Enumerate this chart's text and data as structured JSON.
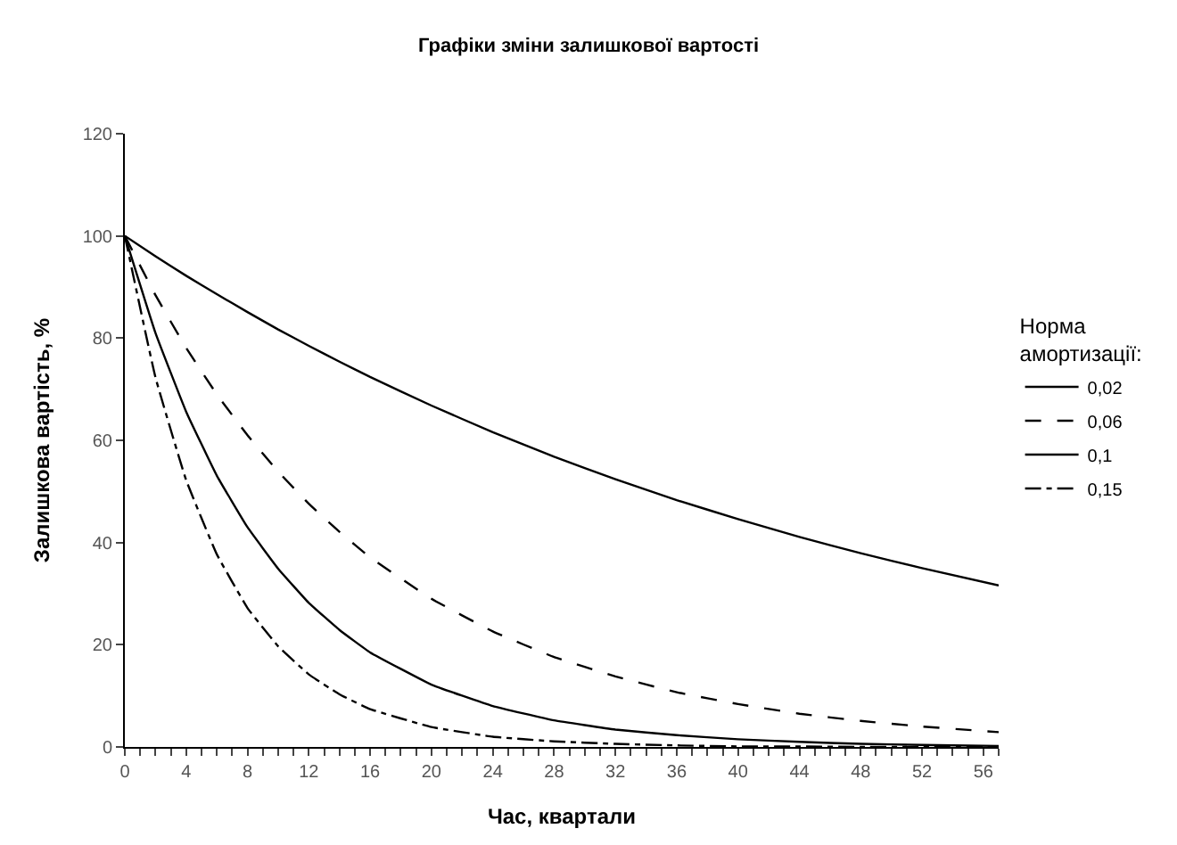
{
  "chart_data": {
    "type": "line",
    "title": "Графіки зміни залишкової вартості",
    "xlabel": "Час, квартали",
    "ylabel": "Залишкова вартість, %",
    "legend_title": "Норма амортизації:",
    "x": [
      0,
      2,
      4,
      6,
      8,
      10,
      12,
      14,
      16,
      20,
      24,
      28,
      32,
      36,
      40,
      44,
      48,
      52,
      57
    ],
    "series": [
      {
        "name": "0,02",
        "color": "#000000",
        "line_style": "solid",
        "values": [
          100,
          96,
          92.2,
          88.6,
          85.1,
          81.7,
          78.5,
          75.4,
          72.4,
          66.8,
          61.6,
          56.8,
          52.4,
          48.3,
          44.6,
          41.1,
          37.9,
          35.0,
          31.6
        ]
      },
      {
        "name": "0,06",
        "color": "#000000",
        "line_style": "dashed",
        "values": [
          100,
          88.4,
          78.1,
          69.0,
          61.0,
          53.9,
          47.6,
          42.1,
          37.1,
          29.0,
          22.6,
          17.6,
          13.8,
          10.7,
          8.4,
          6.5,
          5.1,
          4.0,
          2.9
        ]
      },
      {
        "name": "0,1",
        "color": "#000000",
        "line_style": "solid",
        "values": [
          100,
          81,
          65.6,
          53.1,
          43.0,
          34.9,
          28.2,
          22.9,
          18.5,
          12.2,
          8.0,
          5.2,
          3.4,
          2.3,
          1.5,
          1.0,
          0.6,
          0.4,
          0.2
        ]
      },
      {
        "name": "0,15",
        "color": "#000000",
        "line_style": "dashdot",
        "values": [
          100,
          72.3,
          52.2,
          37.7,
          27.2,
          19.7,
          14.2,
          10.3,
          7.4,
          3.9,
          2.0,
          1.1,
          0.6,
          0.3,
          0.1,
          0.1,
          0,
          0,
          0
        ]
      }
    ],
    "xlim": [
      0,
      57
    ],
    "xticks": [
      0,
      {
        "value": 1,
        "label": null
      },
      {
        "value": 2,
        "label": null
      },
      {
        "value": 3,
        "label": null
      },
      4,
      {
        "value": 5,
        "label": null
      },
      {
        "value": 6,
        "label": null
      },
      {
        "value": 7,
        "label": null
      },
      8,
      {
        "value": 9,
        "label": null
      },
      {
        "value": 10,
        "label": null
      },
      {
        "value": 11,
        "label": null
      },
      12,
      {
        "value": 13,
        "label": null
      },
      {
        "value": 14,
        "label": null
      },
      {
        "value": 15,
        "label": null
      },
      16,
      {
        "value": 17,
        "label": null
      },
      {
        "value": 18,
        "label": null
      },
      {
        "value": 19,
        "label": null
      },
      20,
      {
        "value": 21,
        "label": null
      },
      {
        "value": 22,
        "label": null
      },
      {
        "value": 23,
        "label": null
      },
      24,
      {
        "value": 25,
        "label": null
      },
      {
        "value": 26,
        "label": null
      },
      {
        "value": 27,
        "label": null
      },
      28,
      {
        "value": 29,
        "label": null
      },
      {
        "value": 30,
        "label": null
      },
      {
        "value": 31,
        "label": null
      },
      32,
      {
        "value": 33,
        "label": null
      },
      {
        "value": 34,
        "label": null
      },
      {
        "value": 35,
        "label": null
      },
      36,
      {
        "value": 37,
        "label": null
      },
      {
        "value": 38,
        "label": null
      },
      {
        "value": 39,
        "label": null
      },
      40,
      {
        "value": 41,
        "label": null
      },
      {
        "value": 42,
        "label": null
      },
      {
        "value": 43,
        "label": null
      },
      44,
      {
        "value": 45,
        "label": null
      },
      {
        "value": 46,
        "label": null
      },
      {
        "value": 47,
        "label": null
      },
      48,
      {
        "value": 49,
        "label": null
      },
      {
        "value": 50,
        "label": null
      },
      {
        "value": 51,
        "label": null
      },
      52,
      {
        "value": 53,
        "label": null
      },
      {
        "value": 54,
        "label": null
      },
      {
        "value": 55,
        "label": null
      },
      56,
      {
        "value": 57,
        "label": null
      }
    ],
    "ylim": [
      0,
      120
    ],
    "yticks": [
      0,
      20,
      40,
      60,
      80,
      100,
      120
    ],
    "legend": "right",
    "marker": "none"
  }
}
